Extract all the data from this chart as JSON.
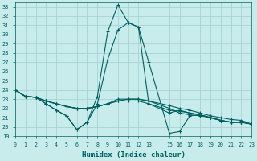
{
  "xlabel": "Humidex (Indice chaleur)",
  "bg_color": "#c8ecec",
  "grid_color": "#a8d4d4",
  "line_color": "#006060",
  "xlim": [
    0,
    23
  ],
  "ylim": [
    19,
    33.5
  ],
  "xticks": [
    0,
    1,
    2,
    3,
    4,
    5,
    6,
    7,
    8,
    9,
    10,
    11,
    12,
    13,
    15,
    16,
    17,
    18,
    19,
    20,
    21,
    22,
    23
  ],
  "yticks": [
    19,
    20,
    21,
    22,
    23,
    24,
    25,
    26,
    27,
    28,
    29,
    30,
    31,
    32,
    33
  ],
  "series": [
    {
      "x": [
        0,
        1,
        2,
        3,
        4,
        5,
        6,
        7,
        8,
        9,
        10,
        11,
        12,
        13,
        15,
        16,
        17,
        18,
        19,
        20,
        21,
        22,
        23
      ],
      "y": [
        24.0,
        23.3,
        23.2,
        22.5,
        21.8,
        21.2,
        19.7,
        20.5,
        23.3,
        30.3,
        33.2,
        31.3,
        30.8,
        27.0,
        19.3,
        19.5,
        21.2,
        21.3,
        21.0,
        20.7,
        20.5,
        20.5,
        20.3
      ]
    },
    {
      "x": [
        0,
        1,
        2,
        3,
        4,
        5,
        6,
        7,
        8,
        9,
        10,
        11,
        12,
        13,
        15,
        16,
        17,
        18,
        19,
        20,
        21,
        22,
        23
      ],
      "y": [
        24.0,
        23.3,
        23.2,
        22.5,
        21.8,
        21.2,
        19.7,
        20.5,
        22.5,
        27.3,
        30.5,
        31.3,
        30.8,
        22.5,
        21.5,
        21.8,
        21.5,
        21.3,
        21.0,
        20.7,
        20.5,
        20.5,
        20.3
      ]
    },
    {
      "x": [
        0,
        1,
        2,
        3,
        4,
        5,
        6,
        7,
        8,
        9,
        10,
        11,
        12,
        13,
        15,
        16,
        17,
        18,
        19,
        20,
        21,
        22,
        23
      ],
      "y": [
        24.0,
        23.3,
        23.2,
        22.8,
        22.5,
        22.2,
        22.0,
        22.0,
        22.2,
        22.5,
        22.8,
        23.0,
        23.0,
        22.8,
        22.0,
        21.5,
        21.3,
        21.2,
        21.0,
        20.7,
        20.5,
        20.5,
        20.3
      ]
    },
    {
      "x": [
        0,
        1,
        2,
        3,
        4,
        5,
        6,
        7,
        8,
        9,
        10,
        11,
        12,
        13,
        15,
        16,
        17,
        18,
        19,
        20,
        21,
        22,
        23
      ],
      "y": [
        24.0,
        23.3,
        23.2,
        22.8,
        22.5,
        22.2,
        22.0,
        22.0,
        22.2,
        22.5,
        22.8,
        22.8,
        22.8,
        22.5,
        21.8,
        21.7,
        21.5,
        21.3,
        21.0,
        20.7,
        20.5,
        20.5,
        20.3
      ]
    },
    {
      "x": [
        0,
        1,
        2,
        3,
        4,
        5,
        6,
        7,
        8,
        9,
        10,
        11,
        12,
        13,
        15,
        16,
        17,
        18,
        19,
        20,
        21,
        22,
        23
      ],
      "y": [
        24.0,
        23.3,
        23.2,
        22.8,
        22.5,
        22.2,
        22.0,
        22.0,
        22.2,
        22.5,
        23.0,
        23.0,
        23.0,
        22.8,
        22.3,
        22.0,
        21.8,
        21.5,
        21.2,
        21.0,
        20.8,
        20.7,
        20.3
      ]
    }
  ]
}
